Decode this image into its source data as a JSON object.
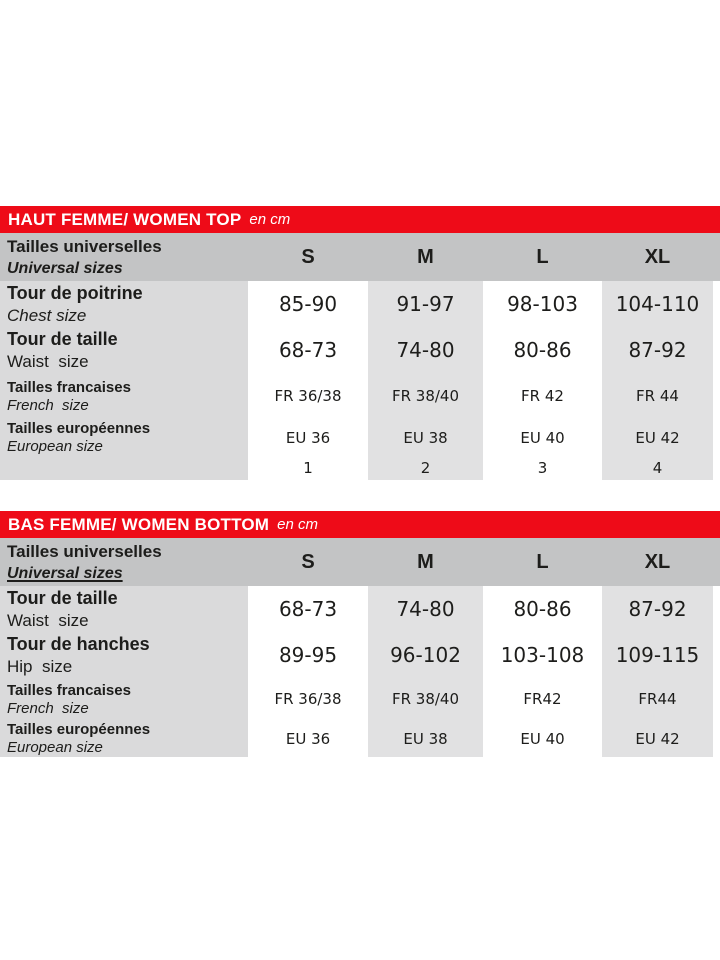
{
  "colors": {
    "accent_red": "#ee0b18",
    "header_gray": "#c3c4c5",
    "label_gray": "#dadadb",
    "stripe_gray": "#e1e1e2",
    "text": "#1d1d1b"
  },
  "tables": [
    {
      "title": "HAUT FEMME/ WOMEN TOP",
      "unit": "en cm",
      "header": {
        "label_fr": "Tailles universelles",
        "label_en": "Universal sizes",
        "sizes": [
          "S",
          "M",
          "L",
          "XL"
        ]
      },
      "rows": [
        {
          "fr": "Tour de poitrine",
          "en": "Chest size",
          "values": [
            "85-90",
            "91-97",
            "98-103",
            "104-110"
          ]
        },
        {
          "fr": "Tour de taille",
          "en": "Waist  size",
          "values": [
            "68-73",
            "74-80",
            "80-86",
            "87-92"
          ]
        },
        {
          "fr": "Tailles francaises",
          "en": "French  size",
          "values": [
            "FR 36/38",
            "FR 38/40",
            "FR 42",
            "FR 44"
          ]
        },
        {
          "fr": "Tailles européennes",
          "en": "European size",
          "values": [
            "EU 36",
            "EU 38",
            "EU 40",
            "EU 42"
          ]
        },
        {
          "fr": "",
          "en": "",
          "values": [
            "1",
            "2",
            "3",
            "4"
          ]
        }
      ]
    },
    {
      "title": "BAS FEMME/ WOMEN BOTTOM",
      "unit": "en cm",
      "header": {
        "label_fr": "Tailles universelles",
        "label_en": "Universal sizes",
        "sizes": [
          "S",
          "M",
          "L",
          "XL"
        ]
      },
      "rows": [
        {
          "fr": "Tour de taille",
          "en": "Waist  size",
          "values": [
            "68-73",
            "74-80",
            "80-86",
            "87-92"
          ]
        },
        {
          "fr": "Tour de hanches",
          "en": "Hip  size",
          "values": [
            "89-95",
            "96-102",
            "103-108",
            "109-115"
          ]
        },
        {
          "fr": "Tailles francaises",
          "en": "French  size",
          "values": [
            "FR 36/38",
            "FR 38/40",
            "FR42",
            "FR44"
          ]
        },
        {
          "fr": "Tailles européennes",
          "en": "European size",
          "values": [
            "EU 36",
            "EU 38",
            "EU 40",
            "EU 42"
          ]
        }
      ]
    }
  ]
}
